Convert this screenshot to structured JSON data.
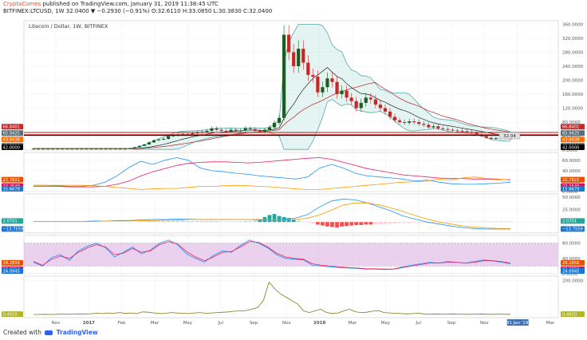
{
  "header": {
    "author": "CryptoComes",
    "published": "published on TradingView.com, January 31, 2019 11:38:45 UTC",
    "ticker": "BITFINEX:LTCUSD, 1W  32.0400  ▼ −0.2930 (−0.91%)  O:32.6110 H:33.0850 L:30.3830 C:32.0400"
  },
  "footer": {
    "created_with": "Created with",
    "brand": "TradingView",
    "logo_icon": "tradingview-logo-icon"
  },
  "chart_data": [
    {
      "type": "candlestick",
      "title": "Litecoin / Dollar, 1W, BITFINEX",
      "x_labels": [
        "Nov",
        "2017",
        "Feb",
        "Mar",
        "May",
        "Jul",
        "Sep",
        "Nov",
        "2018",
        "Mar",
        "May",
        "Jul",
        "Sep",
        "Nov",
        "31 Jan '19",
        "Mar"
      ],
      "y_ticks": [
        0,
        40,
        80,
        120,
        160,
        200,
        240,
        280,
        320,
        360
      ],
      "y_tick_labels": [
        "0.0000",
        "40.0000",
        "80.0000",
        "120.0000",
        "160.0000",
        "200.0000",
        "240.0000",
        "280.0000",
        "320.0000",
        "360.0000"
      ],
      "ylim": [
        0,
        370
      ],
      "candles_close": [
        4,
        4,
        4,
        4,
        4,
        4,
        4,
        4,
        4,
        4,
        4,
        4,
        4,
        4,
        4,
        4,
        4,
        4,
        4,
        4,
        5,
        8,
        12,
        16,
        22,
        28,
        30,
        32,
        40,
        42,
        45,
        46,
        45,
        48,
        50,
        52,
        55,
        62,
        58,
        55,
        52,
        58,
        55,
        56,
        62,
        60,
        55,
        52,
        58,
        65,
        78,
        92,
        330,
        280,
        240,
        290,
        250,
        215,
        210,
        165,
        180,
        205,
        195,
        160,
        170,
        150,
        140,
        120,
        135,
        150,
        145,
        130,
        120,
        110,
        95,
        85,
        80,
        78,
        82,
        80,
        75,
        72,
        65,
        68,
        62,
        60,
        58,
        56,
        55,
        54,
        52,
        50,
        45,
        40,
        35,
        32,
        34,
        38,
        33,
        32
      ],
      "bollinger": {
        "upper": "#5aa9a9",
        "lower": "#5aa9a9",
        "fill": "#b2dfdb"
      },
      "series": [
        {
          "name": "MA 1",
          "color": "#000000"
        },
        {
          "name": "MA 2",
          "color": "#b71c1c"
        }
      ],
      "price_labels": [
        {
          "value": "66.8401",
          "level": 66.84,
          "color": "#c62828"
        },
        {
          "value": "65.9425",
          "level": 65.94,
          "color": "#546e7a"
        },
        {
          "value": "43.9438",
          "level": 43.94,
          "color": "#ff6f00"
        },
        {
          "value": "43.5811",
          "level": 43.58,
          "color": "#455a64"
        },
        {
          "value": "42.0000",
          "level": 42.0,
          "color": "#000000"
        }
      ],
      "horizontal_lines": [
        {
          "level": 43.9,
          "color": "#d32f2f"
        },
        {
          "level": 50.5,
          "color": "#d32f2f"
        },
        {
          "level": 42.0,
          "color": "#000000"
        }
      ],
      "last_price_box": "32.04",
      "grid": true,
      "colors": {
        "up": "#1b5e20",
        "down": "#c62828"
      }
    },
    {
      "type": "line",
      "title": "",
      "y_ticks": [
        0,
        20,
        40,
        60
      ],
      "y_tick_labels": [
        "0.0000",
        "20.0000",
        "40.0000",
        "60.0000"
      ],
      "ylim": [
        0,
        75
      ],
      "series": [
        {
          "color": "#2196f3",
          "values": [
            12,
            12,
            11,
            10,
            10,
            12,
            18,
            30,
            46,
            58,
            52,
            60,
            65,
            60,
            45,
            40,
            38,
            35,
            33,
            30,
            28,
            26,
            24,
            28,
            45,
            52,
            45,
            35,
            30,
            28,
            26,
            24,
            20,
            22,
            18,
            15,
            14,
            14,
            15,
            16,
            18
          ]
        },
        {
          "color": "#e91e63",
          "values": [
            10,
            10,
            10,
            9,
            9,
            9,
            10,
            14,
            20,
            30,
            38,
            44,
            50,
            54,
            56,
            57,
            57,
            56,
            55,
            56,
            58,
            60,
            62,
            64,
            65,
            62,
            56,
            50,
            44,
            40,
            36,
            32,
            30,
            28,
            26,
            25,
            25,
            24,
            24,
            23,
            23
          ]
        },
        {
          "color": "#ff9800",
          "values": [
            12,
            12,
            12,
            12,
            12,
            11,
            10,
            8,
            6,
            4,
            5,
            6,
            6,
            8,
            10,
            10,
            11,
            12,
            11,
            10,
            9,
            7,
            5,
            4,
            4,
            6,
            8,
            10,
            12,
            14,
            16,
            18,
            19,
            20,
            24,
            22,
            26,
            28,
            25,
            24,
            22
          ]
        }
      ],
      "price_labels": [
        {
          "value": "22.7821",
          "level": 22.78,
          "color": "#e65100"
        },
        {
          "value": "22.2549",
          "level": 22.25,
          "color": "#c2185b"
        },
        {
          "value": "15.6679",
          "level": 15.67,
          "color": "#1976d2"
        }
      ]
    },
    {
      "type": "bar",
      "title": "",
      "y_ticks": [
        0,
        25,
        50
      ],
      "y_tick_labels": [
        "0.0000",
        "25.0000",
        "50.0000"
      ],
      "ylim": [
        -22,
        56
      ],
      "histogram": [
        0,
        0,
        0,
        0,
        0,
        0,
        0,
        0,
        0,
        0,
        0,
        0,
        0,
        0,
        0,
        0,
        0,
        0,
        0,
        0,
        0,
        0,
        1,
        1,
        2,
        2,
        2,
        3,
        3,
        3,
        3,
        3,
        2,
        2,
        2,
        2,
        2,
        2,
        2,
        1,
        1,
        1,
        1,
        1,
        2,
        2,
        3,
        5,
        10,
        14,
        16,
        12,
        10,
        8,
        5,
        3,
        1,
        -1,
        -3,
        -5,
        -7,
        -9,
        -10,
        -11,
        -9,
        -8,
        -7,
        -6,
        -6,
        -5,
        -5,
        -4,
        -4,
        -4,
        -3,
        -3,
        -2,
        -2,
        -2,
        -1,
        -1,
        -1,
        -1,
        -1,
        0,
        0,
        1,
        1,
        1,
        1,
        1,
        1,
        1,
        1,
        1,
        1,
        1,
        1,
        1,
        1
      ],
      "series": [
        {
          "color": "#2196f3",
          "values": [
            1,
            1,
            1,
            1,
            1,
            2,
            2,
            3,
            3,
            4,
            5,
            5,
            6,
            6,
            5,
            5,
            5,
            5,
            5,
            4,
            4,
            5,
            8,
            15,
            30,
            42,
            46,
            44,
            38,
            30,
            22,
            12,
            6,
            0,
            -4,
            -8,
            -11,
            -13,
            -14,
            -14,
            -14
          ]
        },
        {
          "color": "#ff9800",
          "values": [
            1,
            1,
            1,
            1,
            1,
            1,
            2,
            2,
            2,
            3,
            3,
            4,
            4,
            5,
            5,
            5,
            5,
            5,
            5,
            5,
            4,
            4,
            5,
            8,
            14,
            24,
            34,
            38,
            38,
            34,
            28,
            21,
            13,
            6,
            0,
            -4,
            -8,
            -10,
            -12,
            -13,
            -13
          ]
        }
      ],
      "price_labels": [
        {
          "value": "2.0701",
          "level": 2.07,
          "color": "#26a69a"
        },
        {
          "value": "−13.7559",
          "level": -13.76,
          "color": "#1976d2"
        }
      ]
    },
    {
      "type": "line",
      "title": "",
      "y_ticks": [
        0,
        40,
        80
      ],
      "y_tick_labels": [
        "0.0000",
        "40.0000",
        "80.0000"
      ],
      "ylim": [
        0,
        100
      ],
      "band": [
        20,
        80
      ],
      "series": [
        {
          "color": "#2196f3",
          "values": [
            30,
            20,
            42,
            50,
            35,
            60,
            72,
            80,
            68,
            44,
            56,
            70,
            52,
            62,
            80,
            88,
            76,
            52,
            40,
            30,
            48,
            60,
            56,
            74,
            88,
            80,
            68,
            50,
            40,
            38,
            36,
            22,
            20,
            18,
            16,
            15,
            14,
            12,
            12,
            11,
            12,
            18,
            22,
            26,
            30,
            28,
            32,
            30,
            28,
            32,
            36,
            34,
            30,
            26
          ]
        },
        {
          "color": "#e91e63",
          "values": [
            32,
            22,
            38,
            46,
            40,
            56,
            68,
            76,
            70,
            50,
            54,
            66,
            56,
            60,
            76,
            84,
            78,
            58,
            44,
            34,
            44,
            56,
            58,
            70,
            84,
            82,
            70,
            54,
            44,
            40,
            38,
            26,
            22,
            20,
            18,
            16,
            15,
            13,
            13,
            12,
            12,
            16,
            20,
            24,
            28,
            28,
            30,
            30,
            28,
            30,
            34,
            34,
            32,
            28
          ]
        }
      ],
      "price_labels": [
        {
          "value": "28.2856",
          "level": 28.29,
          "color": "#e65100"
        },
        {
          "value": "26.2856",
          "level": 26.29,
          "color": "#c2185b"
        },
        {
          "value": "24.0945",
          "level": 24.09,
          "color": "#1976d2"
        }
      ]
    },
    {
      "type": "line",
      "title": "",
      "y_ticks": [
        0,
        200
      ],
      "y_tick_labels": [
        "0.0000",
        "200.0000"
      ],
      "ylim": [
        -20,
        225
      ],
      "series": [
        {
          "color": "#827717",
          "values": [
            -1,
            -1,
            0,
            -1,
            0,
            1,
            0,
            1,
            2,
            2,
            3,
            6,
            4,
            8,
            6,
            10,
            5,
            8,
            4,
            14,
            12,
            8,
            4,
            6,
            10,
            8,
            6,
            4,
            8,
            10,
            6,
            8,
            10,
            12,
            14,
            18,
            20,
            22,
            30,
            40,
            80,
            190,
            150,
            120,
            100,
            80,
            60,
            20,
            10,
            20,
            30,
            10,
            5,
            8,
            20,
            30,
            15,
            10,
            12,
            18,
            22,
            10,
            8,
            6,
            4,
            2,
            4,
            6,
            2,
            1,
            2,
            0,
            1,
            2,
            1,
            0,
            0,
            1,
            2,
            0,
            0,
            1,
            0,
            0
          ]
        }
      ],
      "price_labels": [
        {
          "value": "0.4920",
          "level": 0.49,
          "color": "#afb42b"
        }
      ]
    }
  ]
}
